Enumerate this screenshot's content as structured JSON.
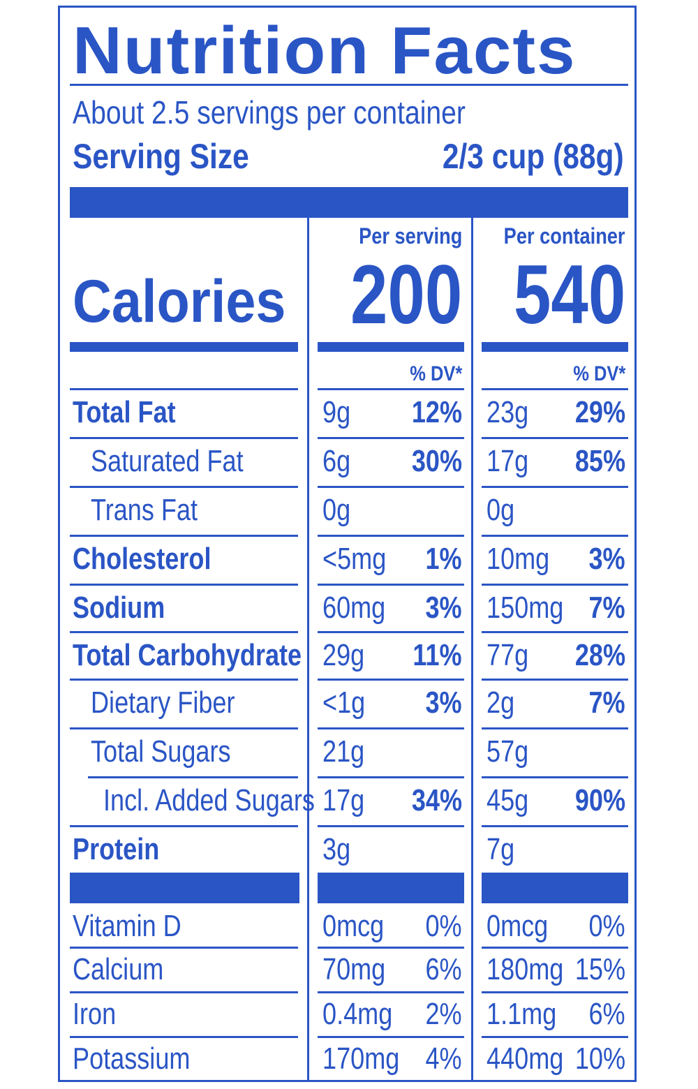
{
  "title": "Nutrition Facts",
  "servings_per_container": "About 2.5 servings per container",
  "serving_size": {
    "label": "Serving Size",
    "value": "2/3 cup (88g)"
  },
  "columns": {
    "per_serving": "Per serving",
    "per_container": "Per container"
  },
  "calories": {
    "label": "Calories",
    "per_serving": "200",
    "per_container": "540"
  },
  "dv_header": "% DV*",
  "nutrients": [
    {
      "name": "Total Fat",
      "bold": true,
      "indent": 0,
      "s_amt": "9g",
      "s_dv": "12%",
      "c_amt": "23g",
      "c_dv": "29%"
    },
    {
      "name": "Saturated Fat",
      "bold": false,
      "indent": 1,
      "s_amt": "6g",
      "s_dv": "30%",
      "c_amt": "17g",
      "c_dv": "85%"
    },
    {
      "name": "Trans Fat",
      "bold": false,
      "indent": 1,
      "s_amt": "0g",
      "s_dv": "",
      "c_amt": "0g",
      "c_dv": ""
    },
    {
      "name": "Cholesterol",
      "bold": true,
      "indent": 0,
      "s_amt": "<5mg",
      "s_dv": "1%",
      "c_amt": "10mg",
      "c_dv": "3%"
    },
    {
      "name": "Sodium",
      "bold": true,
      "indent": 0,
      "s_amt": "60mg",
      "s_dv": "3%",
      "c_amt": "150mg",
      "c_dv": "7%"
    },
    {
      "name": "Total Carbohydrate",
      "bold": true,
      "indent": 0,
      "s_amt": "29g",
      "s_dv": "11%",
      "c_amt": "77g",
      "c_dv": "28%"
    },
    {
      "name": "Dietary Fiber",
      "bold": false,
      "indent": 1,
      "s_amt": "<1g",
      "s_dv": "3%",
      "c_amt": "2g",
      "c_dv": "7%"
    },
    {
      "name": "Total Sugars",
      "bold": false,
      "indent": 1,
      "s_amt": "21g",
      "s_dv": "",
      "c_amt": "57g",
      "c_dv": ""
    },
    {
      "name": "Incl. Added Sugars",
      "bold": false,
      "indent": 2,
      "s_amt": "17g",
      "s_dv": "34%",
      "c_amt": "45g",
      "c_dv": "90%"
    },
    {
      "name": "Protein",
      "bold": true,
      "indent": 0,
      "s_amt": "3g",
      "s_dv": "",
      "c_amt": "7g",
      "c_dv": ""
    }
  ],
  "vitamins": [
    {
      "name": "Vitamin D",
      "s_amt": "0mcg",
      "s_dv": "0%",
      "c_amt": "0mcg",
      "c_dv": "0%"
    },
    {
      "name": "Calcium",
      "s_amt": "70mg",
      "s_dv": "6%",
      "c_amt": "180mg",
      "c_dv": "15%"
    },
    {
      "name": "Iron",
      "s_amt": "0.4mg",
      "s_dv": "2%",
      "c_amt": "1.1mg",
      "c_dv": "6%"
    },
    {
      "name": "Potassium",
      "s_amt": "170mg",
      "s_dv": "4%",
      "c_amt": "440mg",
      "c_dv": "10%"
    }
  ]
}
